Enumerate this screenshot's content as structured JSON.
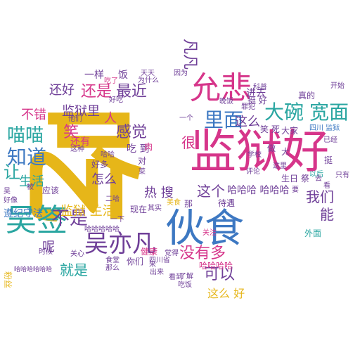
{
  "palette": {
    "purple": "#6f3f98",
    "magenta": "#d6358a",
    "gold": "#e6b619",
    "blue": "#3d78c2",
    "teal": "#2aa6a1",
    "red": "#df4a3f",
    "green": "#8ab44a"
  },
  "words": [
    {
      "text": "吃",
      "color": "#e6b619"
    },
    {
      "text": "监狱好",
      "color": "#d6358a"
    },
    {
      "text": "伙食",
      "color": "#3d78c2"
    },
    {
      "text": "允悲",
      "color": "#d6358a"
    },
    {
      "text": "吴签",
      "color": "#2aa6a1"
    },
    {
      "text": "吴亦凡",
      "color": "#6f3f98"
    },
    {
      "text": "大碗",
      "color": "#2aa6a1"
    },
    {
      "text": "宽面",
      "color": "#2aa6a1"
    },
    {
      "text": "里面",
      "color": "#3d78c2"
    },
    {
      "text": "这么",
      "color": "#6f3f98"
    },
    {
      "text": "知道",
      "color": "#3d78c2"
    },
    {
      "text": "不是",
      "color": "#6f3f98"
    },
    {
      "text": "喵喵",
      "color": "#2aa6a1"
    },
    {
      "text": "最近",
      "color": "#6f3f98"
    },
    {
      "text": "还是",
      "color": "#d6358a"
    },
    {
      "text": "还好",
      "color": "#6f3f98"
    },
    {
      "text": "感觉",
      "color": "#6f3f98"
    },
    {
      "text": "监狱里",
      "color": "#6f3f98"
    },
    {
      "text": "笑",
      "color": "#d6358a"
    },
    {
      "text": "不错",
      "color": "#d6358a"
    },
    {
      "text": "让",
      "color": "#2aa6a1"
    },
    {
      "text": "生活",
      "color": "#2aa6a1"
    },
    {
      "text": "监狱 生活",
      "color": "#e6b619"
    },
    {
      "text": "遵纪守法",
      "color": "#3d78c2"
    },
    {
      "text": "就是",
      "color": "#2aa6a1"
    },
    {
      "text": "可以",
      "color": "#6f3f98"
    },
    {
      "text": "没有多",
      "color": "#d6358a"
    },
    {
      "text": "这么 好",
      "color": "#e6b619"
    },
    {
      "text": "我们",
      "color": "#6f3f98"
    },
    {
      "text": "能",
      "color": "#6f3f98"
    },
    {
      "text": "哈哈哈 哈哈哈",
      "color": "#6f3f98"
    },
    {
      "text": "哈哈哈哈",
      "color": "#d6358a"
    },
    {
      "text": "这个",
      "color": "#6f3f98"
    },
    {
      "text": "热 搜",
      "color": "#6f3f98"
    },
    {
      "text": "怎么",
      "color": "#6f3f98"
    },
    {
      "text": "很",
      "color": "#d6358a"
    },
    {
      "text": "呢",
      "color": "#6f3f98"
    },
    {
      "text": "一样",
      "color": "#6f3f98"
    },
    {
      "text": "饭",
      "color": "#6f3f98"
    },
    {
      "text": "人",
      "color": "#d6358a"
    },
    {
      "text": "吃 到",
      "color": "#6f3f98"
    },
    {
      "text": "好多",
      "color": "#6f3f98"
    },
    {
      "text": "应该",
      "color": "#6f3f98"
    },
    {
      "text": "现在",
      "color": "#6f3f98"
    },
    {
      "text": "健康",
      "color": "#d6358a"
    },
    {
      "text": "你们",
      "color": "#6f3f98"
    },
    {
      "text": "笑 死",
      "color": "#6f3f98"
    },
    {
      "text": "大家",
      "color": "#6f3f98"
    },
    {
      "text": "真的",
      "color": "#6f3f98"
    },
    {
      "text": "挺 好",
      "color": "#6f3f98"
    },
    {
      "text": "进去",
      "color": "#6f3f98"
    },
    {
      "text": "生日 祭",
      "color": "#6f3f98"
    },
    {
      "text": "四川 监狱",
      "color": "#3d78c2"
    },
    {
      "text": "罪犯",
      "color": "#6f3f98"
    },
    {
      "text": "科普",
      "color": "#6f3f98"
    },
    {
      "text": "待遇",
      "color": "#6f3f98"
    },
    {
      "text": "了解",
      "color": "#6f3f98"
    },
    {
      "text": "吃饭",
      "color": "#6f3f98"
    },
    {
      "text": "四川省",
      "color": "#6f3f98"
    },
    {
      "text": "美食",
      "color": "#e6b619"
    },
    {
      "text": "外面",
      "color": "#2aa6a1"
    },
    {
      "text": "凡凡",
      "color": "#6f3f98"
    },
    {
      "text": "还有",
      "color": "#d6358a"
    },
    {
      "text": "好像",
      "color": "#6f3f98"
    },
    {
      "text": "时候",
      "color": "#6f3f98"
    },
    {
      "text": "关心",
      "color": "#6f3f98"
    },
    {
      "text": "他们",
      "color": "#6f3f98"
    },
    {
      "text": "评论",
      "color": "#6f3f98"
    },
    {
      "text": "为什么",
      "color": "#6f3f98"
    },
    {
      "text": "出来",
      "color": "#6f3f98"
    },
    {
      "text": "吃了",
      "color": "#d6358a"
    },
    {
      "text": "食堂",
      "color": "#6f3f98"
    },
    {
      "text": "开始",
      "color": "#6f3f98"
    },
    {
      "text": "以后",
      "color": "#2aa6a1"
    },
    {
      "text": "那么",
      "color": "#6f3f98"
    },
    {
      "text": "这里",
      "color": "#6f3f98"
    },
    {
      "text": "一下",
      "color": "#6f3f98"
    },
    {
      "text": "已经",
      "color": "#6f3f98"
    },
    {
      "text": "哈哈哈哈哈哈",
      "color": "#6f3f98"
    },
    {
      "text": "好吃",
      "color": "#6f3f98"
    },
    {
      "text": "看到",
      "color": "#6f3f98"
    },
    {
      "text": "天天",
      "color": "#6f3f98"
    },
    {
      "text": "哈哈",
      "color": "#6f3f98"
    },
    {
      "text": "因为",
      "color": "#6f3f98"
    },
    {
      "text": "其实",
      "color": "#6f3f98"
    },
    {
      "text": "二哈",
      "color": "#6f3f98"
    },
    {
      "text": "对",
      "color": "#6f3f98"
    },
    {
      "text": "大",
      "color": "#6f3f98"
    },
    {
      "text": "只有",
      "color": "#6f3f98"
    },
    {
      "text": "菜",
      "color": "#6f3f98"
    },
    {
      "text": "觉得",
      "color": "#6f3f98"
    },
    {
      "text": "粉丝",
      "color": "#e6b619"
    },
    {
      "text": "这种",
      "color": "#6f3f98"
    },
    {
      "text": "肉",
      "color": "#d6358a"
    },
    {
      "text": "学校",
      "color": "#6f3f98"
    },
    {
      "text": "一个",
      "color": "#6f3f98"
    },
    {
      "text": "晚饭",
      "color": "#6f3f98"
    },
    {
      "text": "要",
      "color": "#6f3f98"
    },
    {
      "text": "做",
      "color": "#6f3f98"
    },
    {
      "text": "那",
      "color": "#6f3f98"
    },
    {
      "text": "看",
      "color": "#6f3f98"
    },
    {
      "text": "被",
      "color": "#6f3f98"
    },
    {
      "text": "去",
      "color": "#6f3f98"
    },
    {
      "text": "吴",
      "color": "#6f3f98"
    },
    {
      "text": "挺",
      "color": "#6f3f98"
    },
    {
      "text": "来",
      "color": "#6f3f98"
    },
    {
      "text": "关注",
      "color": "#d6358a"
    },
    {
      "text": "哈哈哈哈哈",
      "color": "#6f3f98"
    }
  ]
}
